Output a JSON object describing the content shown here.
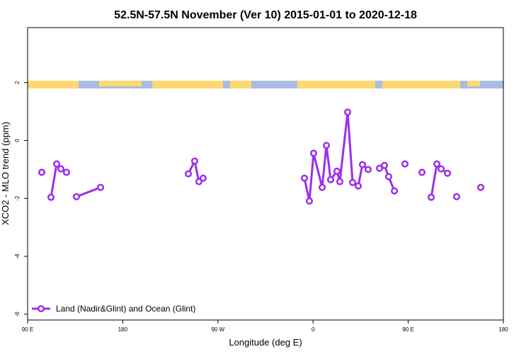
{
  "chart_data": {
    "type": "line",
    "title": "52.5N-57.5N November (Ver 10)   2015-01-01 to 2020-12-18",
    "x_label": "Longitude (deg E)",
    "y_label": "XCO2 - MLO trend (ppm)",
    "xlim": [
      90,
      540
    ],
    "xticks": [
      {
        "value": 90,
        "label": "90 E"
      },
      {
        "value": 180,
        "label": "180"
      },
      {
        "value": 270,
        "label": "90 W"
      },
      {
        "value": 360,
        "label": "0"
      },
      {
        "value": 450,
        "label": "90 E"
      },
      {
        "value": 540,
        "label": "180"
      }
    ],
    "ylim": [
      -6.2,
      3.9
    ],
    "yticks": [
      -6,
      -4,
      -2,
      0,
      2
    ],
    "legend": "bottom-left",
    "series": [
      {
        "name": "Land (Nadir&Glint) and Ocean (Glint)",
        "color": "#9b30e8",
        "x": [
          103.4,
          null,
          112.1,
          117.5,
          121.5,
          126.8,
          null,
          136.2,
          159,
          null,
          242,
          248,
          252,
          256,
          null,
          351.8,
          356.5,
          360.5,
          368.6,
          372.6,
          376.6,
          382.6,
          385.3,
          392.7,
          397.4,
          402.7,
          406.7,
          412.1,
          null,
          422.8,
          427.5,
          431.5,
          436.9,
          null,
          446.9,
          null,
          463,
          null,
          471.7,
          477.1,
          481.1,
          487.1,
          null,
          495.8,
          null,
          518.6
        ],
        "values": [
          -1.1,
          null,
          -1.96,
          -0.81,
          -0.98,
          -1.1,
          null,
          -1.94,
          -1.62,
          null,
          -1.15,
          -0.71,
          -1.42,
          -1.3,
          null,
          -1.3,
          -2.09,
          -0.44,
          -1.62,
          -0.17,
          -1.35,
          -1.06,
          -1.42,
          0.98,
          -1.45,
          -1.57,
          -0.83,
          -1.0,
          null,
          -0.96,
          -0.86,
          -1.25,
          -1.74,
          null,
          -0.81,
          null,
          -1.1,
          null,
          -1.96,
          -0.81,
          -0.98,
          -1.13,
          null,
          -1.94,
          null,
          -1.62
        ]
      }
    ]
  }
}
